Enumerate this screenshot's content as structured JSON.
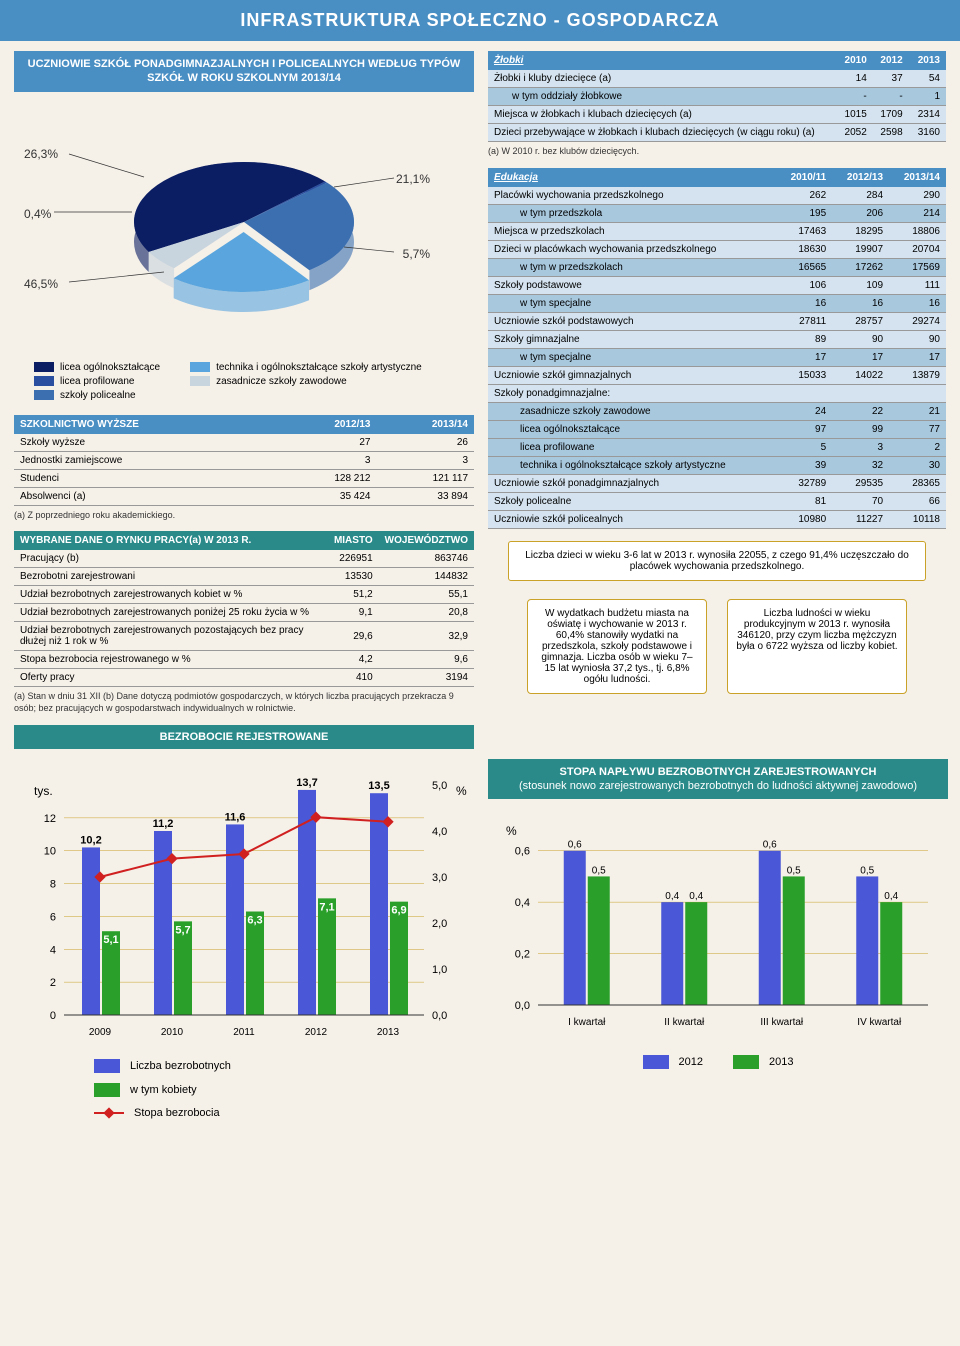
{
  "title": "INFRASTRUKTURA SPOŁECZNO - GOSPODARCZA",
  "pie": {
    "header": "UCZNIOWIE SZKÓŁ PONADGIMNAZJALNYCH I POLICEALNYCH WEDŁUG TYPÓW SZKÓŁ W ROKU SZKOLNYM 2013/14",
    "slices": [
      {
        "label": "26,3%",
        "value": 26.3,
        "color": "#3b6fb0"
      },
      {
        "label": "21,1%",
        "value": 21.1,
        "color": "#5aa5dd"
      },
      {
        "label": "5,7%",
        "value": 5.7,
        "color": "#c8d4de"
      },
      {
        "label": "46,5%",
        "value": 46.5,
        "color": "#0b1e63"
      },
      {
        "label": "0,4%",
        "value": 0.4,
        "color": "#2a4ea0"
      }
    ],
    "legend_left": [
      {
        "color": "#0b1e63",
        "label": "licea ogólnokształcące"
      },
      {
        "color": "#2a4ea0",
        "label": "licea profilowane"
      },
      {
        "color": "#3b6fb0",
        "label": "szkoły policealne"
      }
    ],
    "legend_right": [
      {
        "color": "#5aa5dd",
        "label": "technika i ogólnokształcące szkoły artystyczne"
      },
      {
        "color": "#c8d4de",
        "label": "zasadnicze szkoły zawodowe"
      }
    ]
  },
  "higher_ed": {
    "header": "SZKOLNICTWO WYŻSZE",
    "col1": "2012/13",
    "col2": "2013/14",
    "rows": [
      {
        "name": "Szkoły wyższe",
        "a": "27",
        "b": "26"
      },
      {
        "name": "Jednostki zamiejscowe",
        "a": "3",
        "b": "3"
      },
      {
        "name": "Studenci",
        "a": "128 212",
        "b": "121 117"
      },
      {
        "name": "Absolwenci (a)",
        "a": "35 424",
        "b": "33 894"
      }
    ],
    "note": "(a) Z poprzedniego roku akademickiego."
  },
  "labour": {
    "header": "WYBRANE DANE O RYNKU PRACY(a) W 2013 R.",
    "col1": "MIASTO",
    "col2": "WOJEWÓDZTWO",
    "rows": [
      {
        "name": "Pracujący (b)",
        "a": "226951",
        "b": "863746"
      },
      {
        "name": "Bezrobotni zarejestrowani",
        "a": "13530",
        "b": "144832"
      },
      {
        "name": "Udział bezrobotnych zarejestrowanych kobiet w %",
        "a": "51,2",
        "b": "55,1"
      },
      {
        "name": "Udział bezrobotnych zarejestrowanych poniżej 25 roku życia w %",
        "a": "9,1",
        "b": "20,8"
      },
      {
        "name": "Udział bezrobotnych zarejestrowanych pozostających bez pracy dłużej niż 1 rok w %",
        "a": "29,6",
        "b": "32,9"
      },
      {
        "name": "Stopa bezrobocia rejestrowanego w %",
        "a": "4,2",
        "b": "9,6"
      },
      {
        "name": "Oferty pracy",
        "a": "410",
        "b": "3194"
      }
    ],
    "note": "(a) Stan w dniu 31 XII (b) Dane dotyczą podmiotów gospodarczych, w których liczba pracujących przekracza 9 osób; bez pracujących w gospodarstwach indywidualnych w rolnictwie."
  },
  "unemployment_header": "BEZROBOCIE REJESTROWANE",
  "zlobki": {
    "header": "Żłobki",
    "cols": [
      "2010",
      "2012",
      "2013"
    ],
    "rows": [
      {
        "name": "Żłobki i kluby dziecięce (a)",
        "v": [
          "14",
          "37",
          "54"
        ],
        "sub": false
      },
      {
        "name": "w tym oddziały żłobkowe",
        "v": [
          "-",
          "-",
          "1"
        ],
        "sub": true
      },
      {
        "name": "Miejsca w żłobkach i klubach dziecięcych (a)",
        "v": [
          "1015",
          "1709",
          "2314"
        ],
        "sub": false
      },
      {
        "name": "Dzieci przebywające w żłobkach i klubach dziecięcych (w ciągu roku) (a)",
        "v": [
          "2052",
          "2598",
          "3160"
        ],
        "sub": false
      }
    ],
    "note": "(a) W 2010 r. bez klubów dziecięcych."
  },
  "edukacja": {
    "header": "Edukacja",
    "cols": [
      "2010/11",
      "2012/13",
      "2013/14"
    ],
    "rows": [
      {
        "name": "Placówki wychowania przedszkolnego",
        "v": [
          "262",
          "284",
          "290"
        ],
        "sub": false
      },
      {
        "name": "w tym przedszkola",
        "v": [
          "195",
          "206",
          "214"
        ],
        "sub": true
      },
      {
        "name": "Miejsca w przedszkolach",
        "v": [
          "17463",
          "18295",
          "18806"
        ],
        "sub": false
      },
      {
        "name": "Dzieci w placówkach wychowania przedszkolnego",
        "v": [
          "18630",
          "19907",
          "20704"
        ],
        "sub": false
      },
      {
        "name": "w tym w przedszkolach",
        "v": [
          "16565",
          "17262",
          "17569"
        ],
        "sub": true
      },
      {
        "name": "Szkoły podstawowe",
        "v": [
          "106",
          "109",
          "111"
        ],
        "sub": false
      },
      {
        "name": "w tym specjalne",
        "v": [
          "16",
          "16",
          "16"
        ],
        "sub": true
      },
      {
        "name": "Uczniowie szkół podstawowych",
        "v": [
          "27811",
          "28757",
          "29274"
        ],
        "sub": false
      },
      {
        "name": "Szkoły gimnazjalne",
        "v": [
          "89",
          "90",
          "90"
        ],
        "sub": false
      },
      {
        "name": "w tym specjalne",
        "v": [
          "17",
          "17",
          "17"
        ],
        "sub": true
      },
      {
        "name": "Uczniowie szkół gimnazjalnych",
        "v": [
          "15033",
          "14022",
          "13879"
        ],
        "sub": false
      },
      {
        "name": "Szkoły ponadgimnazjalne:",
        "v": [
          "",
          "",
          ""
        ],
        "sub": false
      },
      {
        "name": "zasadnicze szkoły zawodowe",
        "v": [
          "24",
          "22",
          "21"
        ],
        "sub": true
      },
      {
        "name": "licea ogólnokształcące",
        "v": [
          "97",
          "99",
          "77"
        ],
        "sub": true
      },
      {
        "name": "licea profilowane",
        "v": [
          "5",
          "3",
          "2"
        ],
        "sub": true
      },
      {
        "name": "technika i ogólnokształcące szkoły artystyczne",
        "v": [
          "39",
          "32",
          "30"
        ],
        "sub": true
      },
      {
        "name": "Uczniowie szkół ponadgimnazjalnych",
        "v": [
          "32789",
          "29535",
          "28365"
        ],
        "sub": false
      },
      {
        "name": "Szkoły policealne",
        "v": [
          "81",
          "70",
          "66"
        ],
        "sub": false
      },
      {
        "name": "Uczniowie szkół policealnych",
        "v": [
          "10980",
          "11227",
          "10118"
        ],
        "sub": false
      }
    ]
  },
  "callout_top": "Liczba dzieci w wieku 3-6 lat w 2013 r. wynosiła 22055, z czego 91,4% uczęszczało do placówek wychowania przedszkolnego.",
  "callout_left": "W wydatkach budżetu miasta na oświatę i wychowanie w 2013 r. 60,4% stanowiły wydatki na przedszkola, szkoły podstawowe i gimnazja. Liczba osób w wieku 7–15 lat wyniosła 37,2 tys., tj. 6,8% ogółu ludności.",
  "callout_right": "Liczba ludności w wieku produkcyjnym w 2013 r. wynosiła 346120, przy czym liczba mężczyzn była o 6722 wyższa od liczby kobiet.",
  "barchart1": {
    "categories": [
      "2009",
      "2010",
      "2011",
      "2012",
      "2013"
    ],
    "blue": [
      10.2,
      11.2,
      11.6,
      13.7,
      13.5
    ],
    "green": [
      5.1,
      5.7,
      6.3,
      7.1,
      6.9
    ],
    "line": [
      3.0,
      3.4,
      3.5,
      4.3,
      4.2
    ],
    "y1_max": 14,
    "y1_ticks": [
      0,
      2,
      4,
      6,
      8,
      10,
      12
    ],
    "y2_max": 5,
    "y2_ticks": [
      "0,0",
      "1,0",
      "2,0",
      "3,0",
      "4,0",
      "5,0"
    ],
    "y1_label": "tys.",
    "y2_label": "%",
    "colors": {
      "blue": "#4a57d6",
      "green": "#2aa02a",
      "line": "#d02020",
      "grid": "#c9a227",
      "axis": "#555"
    },
    "legend": [
      {
        "color": "#4a57d6",
        "label": "Liczba bezrobotnych",
        "type": "box"
      },
      {
        "color": "#2aa02a",
        "label": "w tym kobiety",
        "type": "box"
      },
      {
        "color": "#d02020",
        "label": "Stopa bezrobocia",
        "type": "line"
      }
    ]
  },
  "naplyw": {
    "header": "STOPA NAPŁYWU BEZROBOTNYCH ZAREJESTROWANYCH",
    "sub": "(stosunek nowo zarejestrowanych bezrobotnych do ludności aktywnej zawodowo)",
    "categories": [
      "I kwartał",
      "II kwartał",
      "III kwartał",
      "IV kwartał"
    ],
    "v2012": [
      0.6,
      0.4,
      0.6,
      0.5
    ],
    "v2013": [
      0.5,
      0.4,
      0.5,
      0.4
    ],
    "y_max": 0.7,
    "y_ticks": [
      "0,0",
      "0,2",
      "0,4",
      "0,6"
    ],
    "y_label": "%",
    "colors": {
      "a": "#4a57d6",
      "b": "#2aa02a",
      "grid": "#c9a227"
    },
    "legend": [
      {
        "color": "#4a57d6",
        "label": "2012"
      },
      {
        "color": "#2aa02a",
        "label": "2013"
      }
    ]
  }
}
